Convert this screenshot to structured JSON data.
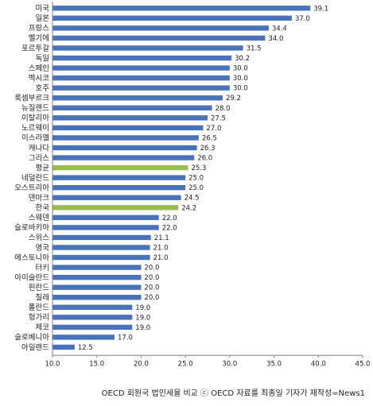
{
  "chart_data": {
    "type": "bar",
    "orientation": "horizontal",
    "categories": [
      "미국",
      "일본",
      "프랑스",
      "벨기에",
      "포르투갈",
      "독일",
      "스페인",
      "멕시코",
      "호주",
      "룩셈부르크",
      "뉴질랜드",
      "이탈리아",
      "노르웨이",
      "이스라엘",
      "캐나다",
      "그리스",
      "평균",
      "네덜란드",
      "오스트리아",
      "덴마크",
      "한국",
      "스웨덴",
      "슬로바키아",
      "스위스",
      "영국",
      "에스토니아",
      "터키",
      "아이슬란드",
      "핀란드",
      "칠레",
      "폴란드",
      "헝가리",
      "체코",
      "슬로베니아",
      "아일랜드"
    ],
    "values": [
      39.1,
      37.0,
      34.4,
      34.0,
      31.5,
      30.2,
      30.0,
      30.0,
      30.0,
      29.2,
      28.0,
      27.5,
      27.0,
      26.5,
      26.3,
      26.0,
      25.3,
      25.0,
      25.0,
      24.5,
      24.2,
      22.0,
      22.0,
      21.1,
      21.0,
      21.0,
      20.0,
      20.0,
      20.0,
      20.0,
      19.0,
      19.0,
      19.0,
      17.0,
      12.5
    ],
    "value_labels": [
      "39.1",
      "37.0",
      "34.4",
      "34.0",
      "31.5",
      "30.2",
      "30.0",
      "30.0",
      "30.0",
      "29.2",
      "28.0",
      "27.5",
      "27.0",
      "26.5",
      "26.3",
      "26.0",
      "25.3",
      "25.0",
      "25.0",
      "24.5",
      "24.2",
      "22.0",
      "22.0",
      "21.1",
      "21.0",
      "21.0",
      "20.0",
      "20.0",
      "20.0",
      "20.0",
      "19.0",
      "19.0",
      "19.0",
      "17.0",
      "12.5"
    ],
    "highlighted": [
      "평균",
      "한국"
    ],
    "xlim": [
      10.0,
      45.0
    ],
    "x_ticks": [
      "10.0",
      "15.0",
      "20.0",
      "25.0",
      "30.0",
      "35.0",
      "40.0",
      "45.0"
    ],
    "grid": false,
    "title": "",
    "xlabel": "",
    "ylabel": "",
    "colors": {
      "bar": "#4a72b8",
      "highlight": "#9bbb59",
      "axis": "#808080"
    }
  },
  "caption": "OECD 회원국 법인세율 비교 ⓒ OECD 자료를 최종일 기자가 재작성=News1"
}
